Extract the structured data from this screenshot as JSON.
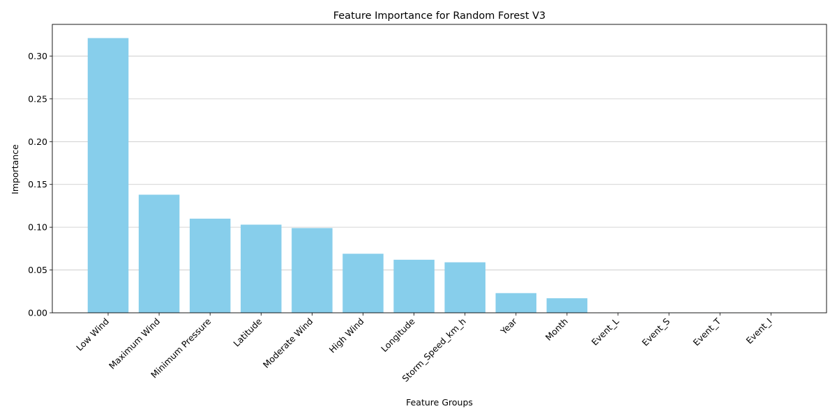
{
  "chart_data": {
    "type": "bar",
    "title": "Feature Importance for Random Forest V3",
    "xlabel": "Feature Groups",
    "ylabel": "Importance",
    "categories": [
      "Low Wind",
      "Maximum Wind",
      "Minimum Pressure",
      "Latitude",
      "Moderate Wind",
      "High Wind",
      "Longitude",
      "Storm_Speed_km_h",
      "Year",
      "Month",
      "Event_L",
      "Event_S",
      "Event_T",
      "Event_I"
    ],
    "values": [
      0.321,
      0.138,
      0.11,
      0.103,
      0.099,
      0.069,
      0.062,
      0.059,
      0.023,
      0.017,
      0.0003,
      0.0002,
      0.0001,
      0.0001
    ],
    "yticks": [
      "0.00",
      "0.05",
      "0.10",
      "0.15",
      "0.20",
      "0.25",
      "0.30"
    ],
    "ylim": [
      0,
      0.337
    ],
    "bar_color": "#87CEEB",
    "grid": "y-axis horizontal lines",
    "legend": "none"
  }
}
